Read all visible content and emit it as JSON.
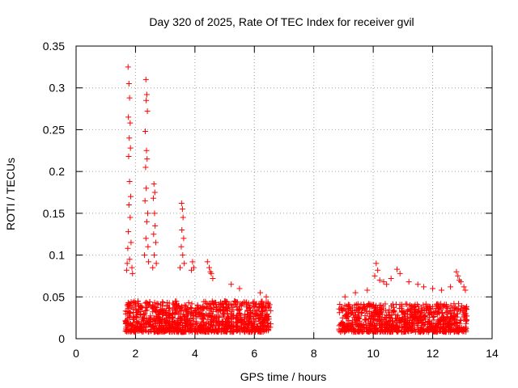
{
  "chart_data": {
    "type": "scatter",
    "title": "Day 320 of 2025, Rate Of TEC Index for receiver gvil",
    "xlabel": "GPS time / hours",
    "ylabel": "ROTI / TECUs",
    "xlim": [
      0,
      14
    ],
    "ylim": [
      0,
      0.35
    ],
    "x_ticks": [
      0,
      2,
      4,
      6,
      8,
      10,
      12,
      14
    ],
    "y_ticks": [
      0,
      0.05,
      0.1,
      0.15,
      0.2,
      0.25,
      0.3,
      0.35
    ],
    "x_tick_labels": [
      "0",
      "2",
      "4",
      "6",
      "8",
      "10",
      "12",
      "14"
    ],
    "y_tick_labels": [
      "0",
      "0.05",
      "0.1",
      "0.15",
      "0.2",
      "0.25",
      "0.3",
      "0.35"
    ],
    "grid": true,
    "marker": "+",
    "color": "#ff0000",
    "series": [
      {
        "name": "ROTI",
        "points": [
          [
            1.75,
            0.325
          ],
          [
            1.78,
            0.305
          ],
          [
            1.8,
            0.288
          ],
          [
            1.76,
            0.265
          ],
          [
            1.82,
            0.258
          ],
          [
            1.79,
            0.24
          ],
          [
            1.83,
            0.228
          ],
          [
            1.77,
            0.218
          ],
          [
            1.8,
            0.188
          ],
          [
            1.84,
            0.17
          ],
          [
            1.78,
            0.16
          ],
          [
            1.82,
            0.145
          ],
          [
            1.76,
            0.128
          ],
          [
            1.85,
            0.115
          ],
          [
            1.74,
            0.108
          ],
          [
            1.8,
            0.095
          ],
          [
            1.72,
            0.09
          ],
          [
            1.88,
            0.085
          ],
          [
            1.9,
            0.078
          ],
          [
            1.7,
            0.082
          ],
          [
            2.35,
            0.31
          ],
          [
            2.38,
            0.292
          ],
          [
            2.36,
            0.285
          ],
          [
            2.4,
            0.272
          ],
          [
            2.33,
            0.248
          ],
          [
            2.37,
            0.225
          ],
          [
            2.39,
            0.215
          ],
          [
            2.34,
            0.205
          ],
          [
            2.36,
            0.18
          ],
          [
            2.32,
            0.165
          ],
          [
            2.41,
            0.15
          ],
          [
            2.38,
            0.14
          ],
          [
            2.35,
            0.12
          ],
          [
            2.42,
            0.11
          ],
          [
            2.3,
            0.1
          ],
          [
            2.44,
            0.092
          ],
          [
            2.62,
            0.185
          ],
          [
            2.65,
            0.175
          ],
          [
            2.6,
            0.168
          ],
          [
            2.64,
            0.15
          ],
          [
            2.66,
            0.135
          ],
          [
            2.61,
            0.125
          ],
          [
            2.68,
            0.115
          ],
          [
            2.63,
            0.1
          ],
          [
            2.7,
            0.09
          ],
          [
            2.58,
            0.085
          ],
          [
            3.55,
            0.162
          ],
          [
            3.58,
            0.155
          ],
          [
            3.6,
            0.145
          ],
          [
            3.56,
            0.13
          ],
          [
            3.62,
            0.12
          ],
          [
            3.54,
            0.11
          ],
          [
            3.59,
            0.1
          ],
          [
            3.64,
            0.09
          ],
          [
            3.5,
            0.085
          ],
          [
            3.92,
            0.092
          ],
          [
            3.96,
            0.085
          ],
          [
            3.88,
            0.082
          ],
          [
            4.42,
            0.092
          ],
          [
            4.48,
            0.085
          ],
          [
            4.55,
            0.078
          ],
          [
            4.6,
            0.072
          ],
          [
            4.52,
            0.08
          ],
          [
            5.22,
            0.065
          ],
          [
            5.5,
            0.06
          ],
          [
            6.2,
            0.055
          ],
          [
            6.4,
            0.05
          ],
          [
            9.05,
            0.05
          ],
          [
            9.4,
            0.055
          ],
          [
            9.8,
            0.058
          ],
          [
            10.1,
            0.09
          ],
          [
            10.15,
            0.082
          ],
          [
            10.05,
            0.075
          ],
          [
            10.22,
            0.07
          ],
          [
            10.35,
            0.068
          ],
          [
            10.45,
            0.065
          ],
          [
            10.6,
            0.072
          ],
          [
            10.8,
            0.083
          ],
          [
            10.9,
            0.078
          ],
          [
            11.2,
            0.068
          ],
          [
            11.5,
            0.065
          ],
          [
            11.7,
            0.062
          ],
          [
            12.0,
            0.06
          ],
          [
            12.3,
            0.058
          ],
          [
            12.6,
            0.062
          ],
          [
            12.8,
            0.08
          ],
          [
            12.85,
            0.075
          ],
          [
            12.9,
            0.07
          ],
          [
            12.95,
            0.068
          ],
          [
            13.05,
            0.062
          ],
          [
            13.1,
            0.058
          ]
        ],
        "dense_bands": [
          {
            "x_start": 1.65,
            "x_end": 6.55,
            "y_min": 0.008,
            "y_max": 0.045,
            "count": 1100
          },
          {
            "x_start": 8.85,
            "x_end": 13.15,
            "y_min": 0.008,
            "y_max": 0.042,
            "count": 900
          }
        ]
      }
    ]
  }
}
